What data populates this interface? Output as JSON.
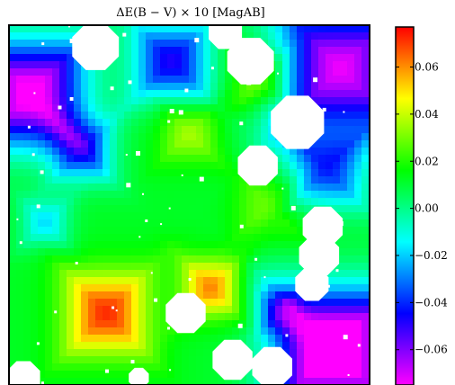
{
  "chart_data": {
    "type": "heatmap",
    "title": "ΔE(B − V) × 10 [MagAB]",
    "xlabel": "",
    "ylabel": "",
    "colorbar": {
      "min": -0.075,
      "max": 0.077,
      "ticks": [
        -0.06,
        -0.04,
        -0.02,
        0.0,
        0.02,
        0.04,
        0.06
      ],
      "tick_labels": [
        "−0.06",
        "−0.04",
        "−0.02",
        "0.00",
        "0.02",
        "0.04",
        "0.06"
      ],
      "colormap": [
        "#ff00ff",
        "#0000ff",
        "#00ffff",
        "#00ff00",
        "#ffff00",
        "#ff0000"
      ]
    },
    "features": {
      "background_level": 0.012,
      "red_peak_value": 0.072,
      "masked_color": "#ffffff"
    }
  }
}
